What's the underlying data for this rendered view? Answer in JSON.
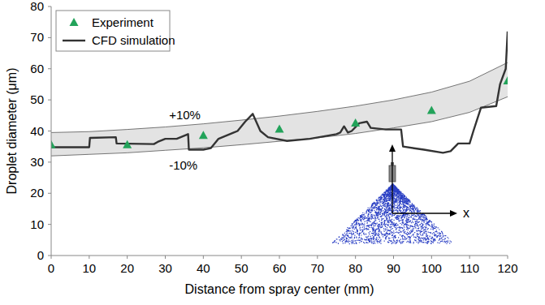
{
  "chart_data": {
    "type": "line",
    "x_label": "Distance from spray center (mm)",
    "y_label": "Droplet diameter (μm)",
    "xlim": [
      0,
      120
    ],
    "ylim": [
      0,
      80
    ],
    "xticks": [
      0,
      10,
      20,
      30,
      40,
      50,
      60,
      70,
      80,
      90,
      100,
      110,
      120
    ],
    "yticks": [
      0,
      10,
      20,
      30,
      40,
      50,
      60,
      70,
      80
    ],
    "grid": false,
    "legend": "upper left",
    "series": [
      {
        "name": "Experiment",
        "type": "scatter",
        "marker": "triangle",
        "color": "#22a35a",
        "x": [
          0,
          20,
          40,
          60,
          80,
          100,
          120
        ],
        "values": [
          35.5,
          35.5,
          38.5,
          40.5,
          42.5,
          46.5,
          56
        ]
      },
      {
        "name": "CFD simulation",
        "type": "line",
        "line_style": "solid",
        "color": "#333333",
        "x": [
          0,
          10,
          10.2,
          17,
          17.2,
          27,
          28,
          30,
          33,
          36,
          36.2,
          40,
          42,
          44,
          48,
          49,
          51,
          53,
          55,
          57,
          62,
          68,
          75,
          76,
          77,
          78,
          79,
          81,
          83,
          84,
          88,
          92,
          92.5,
          98,
          103,
          105,
          107,
          110,
          111,
          113,
          117,
          118,
          119.5,
          120
        ],
        "values": [
          34.8,
          34.8,
          37.8,
          38,
          36,
          35.8,
          36.5,
          37.5,
          37.5,
          39,
          34,
          34,
          34.5,
          37.5,
          39.5,
          40,
          43,
          45.5,
          40,
          38,
          36.8,
          37.5,
          39,
          39.5,
          41.5,
          39.5,
          40,
          42.5,
          43,
          41,
          40.5,
          40.5,
          35,
          34,
          33,
          33.5,
          36,
          36,
          40,
          47.5,
          48,
          55,
          60,
          72
        ]
      }
    ],
    "band": {
      "x": [
        0,
        10,
        20,
        30,
        40,
        50,
        60,
        70,
        80,
        90,
        100,
        110,
        120
      ],
      "upper": [
        39.5,
        39.8,
        40.5,
        41.3,
        42.3,
        43.5,
        44.8,
        46.3,
        48,
        50,
        52.5,
        56,
        62
      ],
      "lower": [
        32,
        32.5,
        33,
        33.8,
        34.6,
        35.6,
        36.7,
        37.8,
        39.2,
        41,
        43,
        46,
        51
      ],
      "labels": [
        "+10%",
        "-10%"
      ]
    },
    "inset_axis_label": "x"
  }
}
